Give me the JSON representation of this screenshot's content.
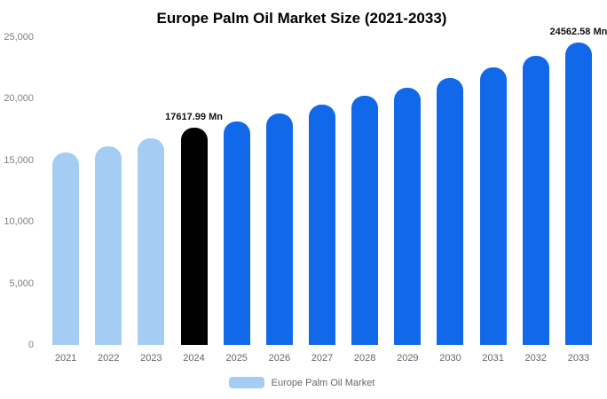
{
  "title": "Europe Palm Oil Market Size (2021-2033)",
  "chart_data": {
    "type": "bar",
    "title": "Europe Palm Oil Market Size (2021-2033)",
    "xlabel": "",
    "ylabel": "",
    "ylim": [
      0,
      25000
    ],
    "grid": false,
    "legend_position": "bottom",
    "categories": [
      "2021",
      "2022",
      "2023",
      "2024",
      "2025",
      "2026",
      "2027",
      "2028",
      "2029",
      "2030",
      "2031",
      "2032",
      "2033"
    ],
    "values": [
      15600,
      16150,
      16800,
      17617.99,
      18150,
      18800,
      19500,
      20250,
      20900,
      21700,
      22550,
      23500,
      24562.58
    ],
    "bar_colors": [
      "#a5cdf3",
      "#a5cdf3",
      "#a5cdf3",
      "#000000",
      "#1169e9",
      "#1169e9",
      "#1169e9",
      "#1169e9",
      "#1169e9",
      "#1169e9",
      "#1169e9",
      "#1169e9",
      "#1169e9"
    ],
    "yticks": [
      {
        "value": 0,
        "label": "0"
      },
      {
        "value": 5000,
        "label": "5,000"
      },
      {
        "value": 10000,
        "label": "10,000"
      },
      {
        "value": 15000,
        "label": "15,000"
      },
      {
        "value": 20000,
        "label": "20,000"
      },
      {
        "value": 25000,
        "label": "25,000"
      }
    ],
    "annotations": [
      {
        "index": 3,
        "text": "17617.99 Mn"
      },
      {
        "index": 12,
        "text": "24562.58 Mn"
      }
    ],
    "legend": [
      {
        "label": "Europe Palm Oil Market",
        "color": "#a5cdf3"
      }
    ]
  }
}
